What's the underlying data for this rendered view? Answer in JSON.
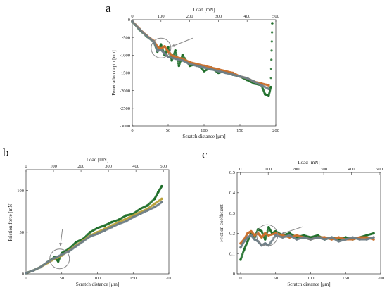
{
  "figure": {
    "background": "#ffffff",
    "series_colors": [
      "#1f6e2a",
      "#c9702e",
      "#6f7f87",
      "#b9a13a"
    ]
  },
  "chart_data": [
    {
      "panel": "a",
      "type": "scatter",
      "xlabel": "Scratch distance [μm]",
      "ylabel": "Penetration depth [nm]",
      "x2label": "Load [mN]",
      "xlim": [
        0,
        200
      ],
      "ylim": [
        -3000,
        0
      ],
      "x2lim": [
        0,
        500
      ],
      "xticks": [
        0,
        50,
        100,
        150,
        200
      ],
      "yticks": [
        0,
        -500,
        -1000,
        -1500,
        -2000,
        -2500,
        -3000
      ],
      "x2ticks": [
        0,
        100,
        200,
        300,
        400,
        500
      ],
      "x2tick_labels": [
        "0",
        "100",
        "200",
        "300",
        "400",
        "500"
      ],
      "grid": false,
      "annotations": [
        {
          "shape": "circle",
          "x": 40,
          "y": -800,
          "note": "arrow"
        }
      ],
      "series": [
        {
          "color": "#1f6e2a",
          "x": [
            0,
            10,
            20,
            30,
            35,
            40,
            45,
            50,
            55,
            60,
            65,
            70,
            80,
            90,
            100,
            110,
            120,
            130,
            140,
            150,
            160,
            170,
            180,
            185,
            190,
            193,
            195
          ],
          "y": [
            -50,
            -280,
            -470,
            -620,
            -900,
            -700,
            -1000,
            -780,
            -1150,
            -870,
            -1300,
            -1000,
            -1300,
            -1250,
            -1450,
            -1350,
            -1500,
            -1450,
            -1550,
            -1600,
            -1700,
            -1800,
            -1850,
            -2100,
            -2150,
            -1900,
            -100
          ]
        },
        {
          "color": "#c9702e",
          "x": [
            0,
            10,
            20,
            30,
            35,
            40,
            45,
            50,
            55,
            60,
            70,
            80,
            90,
            100,
            110,
            120,
            130,
            140,
            150,
            160,
            170,
            180,
            190
          ],
          "y": [
            -40,
            -260,
            -450,
            -600,
            -760,
            -820,
            -750,
            -900,
            -1000,
            -1050,
            -1100,
            -1200,
            -1250,
            -1300,
            -1350,
            -1400,
            -1450,
            -1500,
            -1600,
            -1650,
            -1750,
            -1800,
            -1850
          ]
        },
        {
          "color": "#6f7f87",
          "x": [
            0,
            10,
            20,
            30,
            35,
            40,
            45,
            50,
            60,
            70,
            80,
            90,
            100,
            110,
            120,
            130,
            140,
            150,
            160,
            170,
            180,
            190
          ],
          "y": [
            -45,
            -270,
            -460,
            -620,
            -880,
            -850,
            -950,
            -1050,
            -1100,
            -1150,
            -1250,
            -1300,
            -1350,
            -1400,
            -1450,
            -1500,
            -1550,
            -1600,
            -1650,
            -1750,
            -1850,
            -1950
          ]
        }
      ]
    },
    {
      "panel": "b",
      "type": "scatter",
      "xlabel": "Scratch distance [μm]",
      "ylabel": "Friction force [mN]",
      "x2label": "Load [mN]",
      "xlim": [
        0,
        200
      ],
      "ylim": [
        0,
        125
      ],
      "x2lim": [
        0,
        520
      ],
      "xticks": [
        0,
        50,
        100,
        150,
        200
      ],
      "yticks": [
        0,
        50,
        100
      ],
      "x2ticks": [
        0,
        100,
        200,
        300,
        400,
        500
      ],
      "x2tick_labels": [
        "0",
        "100",
        "200",
        "300",
        "400",
        "500"
      ],
      "grid": false,
      "annotations": [
        {
          "shape": "circle",
          "x": 47,
          "y": 18,
          "note": "arrow"
        }
      ],
      "series": [
        {
          "color": "#1f6e2a",
          "x": [
            0,
            10,
            20,
            30,
            40,
            45,
            50,
            60,
            70,
            80,
            90,
            100,
            110,
            120,
            130,
            140,
            150,
            160,
            170,
            180,
            185,
            190
          ],
          "y": [
            1,
            4,
            8,
            14,
            20,
            15,
            25,
            30,
            38,
            42,
            50,
            55,
            58,
            62,
            65,
            70,
            72,
            78,
            82,
            90,
            98,
            105
          ]
        },
        {
          "color": "#b9a13a",
          "x": [
            0,
            10,
            20,
            30,
            40,
            50,
            60,
            70,
            80,
            90,
            100,
            110,
            120,
            130,
            140,
            150,
            160,
            170,
            180,
            190
          ],
          "y": [
            1,
            4,
            8,
            13,
            18,
            22,
            28,
            34,
            40,
            46,
            50,
            54,
            58,
            62,
            66,
            70,
            74,
            78,
            84,
            90
          ]
        },
        {
          "color": "#6f7f87",
          "x": [
            0,
            10,
            20,
            30,
            40,
            50,
            60,
            70,
            80,
            90,
            100,
            110,
            120,
            130,
            140,
            150,
            160,
            170,
            180,
            190
          ],
          "y": [
            1,
            4,
            8,
            14,
            19,
            23,
            27,
            33,
            39,
            45,
            48,
            52,
            56,
            60,
            63,
            68,
            72,
            76,
            80,
            86
          ]
        }
      ]
    },
    {
      "panel": "c",
      "type": "scatter",
      "xlabel": "Scratch distance [μm]",
      "ylabel": "Friction coefficient",
      "x2label": "Load [mN]",
      "xlim": [
        -5,
        200
      ],
      "ylim": [
        0,
        0.5
      ],
      "x2lim": [
        -12,
        505
      ],
      "xticks": [
        0,
        50,
        100,
        150,
        200
      ],
      "yticks": [
        0,
        0.1,
        0.2,
        0.3,
        0.4,
        0.5
      ],
      "x2ticks": [
        0,
        100,
        200,
        300,
        400,
        500
      ],
      "x2tick_labels": [
        "0",
        "100",
        "200",
        "300",
        "400",
        "500"
      ],
      "grid": false,
      "annotations": [
        {
          "shape": "circle",
          "x": 38,
          "y": 0.19,
          "note": "arrow"
        }
      ],
      "series": [
        {
          "color": "#1f6e2a",
          "x": [
            0,
            5,
            10,
            15,
            20,
            25,
            30,
            35,
            40,
            45,
            50,
            60,
            70,
            80,
            90,
            100,
            110,
            120,
            130,
            140,
            150,
            160,
            170,
            180,
            190
          ],
          "y": [
            0.07,
            0.12,
            0.16,
            0.2,
            0.18,
            0.22,
            0.21,
            0.17,
            0.23,
            0.2,
            0.21,
            0.19,
            0.2,
            0.18,
            0.19,
            0.18,
            0.19,
            0.17,
            0.18,
            0.17,
            0.18,
            0.17,
            0.18,
            0.19,
            0.2
          ]
        },
        {
          "color": "#c9702e",
          "x": [
            0,
            5,
            10,
            15,
            20,
            25,
            30,
            35,
            40,
            50,
            60,
            70,
            80,
            90,
            100,
            110,
            120,
            130,
            140,
            150,
            160,
            170,
            180,
            190
          ],
          "y": [
            0.15,
            0.17,
            0.2,
            0.21,
            0.19,
            0.2,
            0.18,
            0.2,
            0.19,
            0.2,
            0.19,
            0.18,
            0.19,
            0.18,
            0.17,
            0.18,
            0.18,
            0.17,
            0.18,
            0.17,
            0.17,
            0.18,
            0.18,
            0.17
          ]
        },
        {
          "color": "#6f7f87",
          "x": [
            0,
            5,
            10,
            15,
            20,
            25,
            30,
            35,
            40,
            50,
            60,
            70,
            80,
            90,
            100,
            110,
            120,
            130,
            140,
            150,
            160,
            170,
            180,
            190
          ],
          "y": [
            0.13,
            0.16,
            0.18,
            0.19,
            0.17,
            0.16,
            0.14,
            0.15,
            0.14,
            0.19,
            0.18,
            0.19,
            0.17,
            0.18,
            0.17,
            0.18,
            0.17,
            0.18,
            0.16,
            0.17,
            0.18,
            0.17,
            0.17,
            0.18
          ]
        }
      ]
    }
  ]
}
